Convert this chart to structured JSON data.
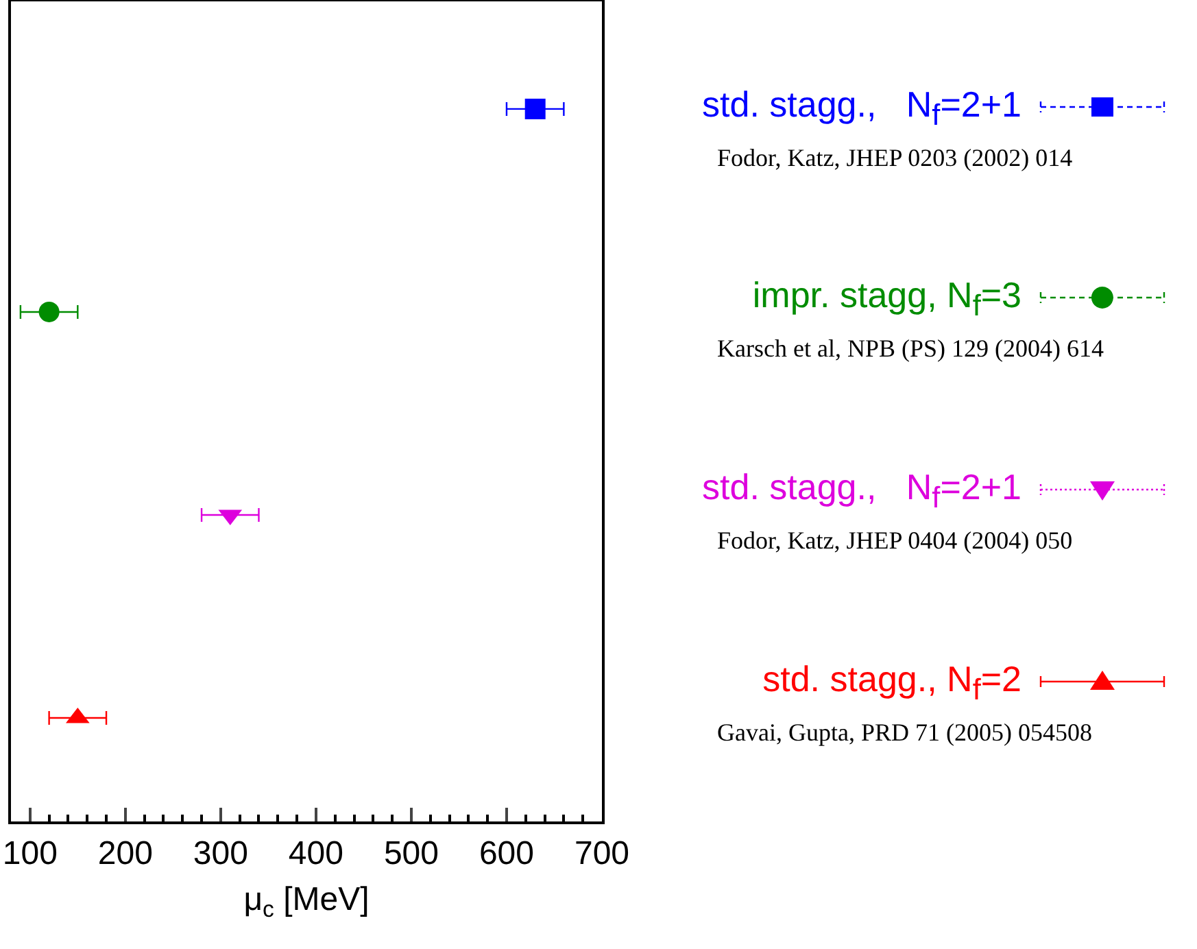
{
  "chart_data": {
    "type": "scatter",
    "orientation": "horizontal",
    "xlabel": "μ$_{c}$ [MeV]",
    "categories": [
      null,
      null,
      null,
      null
    ],
    "xlim": [
      80,
      700
    ],
    "xticks": [
      100,
      200,
      300,
      400,
      500,
      600,
      700
    ],
    "tick_labels": "x",
    "grid": false,
    "legend": "right",
    "series": [
      {
        "name": "std. stagg.,   N$_{f}$=2+1",
        "color": "#0000ff",
        "marker": "square",
        "line_style": "dashed",
        "values": [
          630,
          null,
          null,
          null
        ],
        "errors": [
          30,
          null,
          null,
          null
        ]
      },
      {
        "name": "impr. stagg, N$_{f}$=3",
        "color": "#008c00",
        "marker": "circle",
        "line_style": "dashed",
        "values": [
          null,
          120,
          null,
          null
        ],
        "errors": [
          null,
          30,
          null,
          null
        ]
      },
      {
        "name": "std. stagg.,   N$_{f}$=2+1",
        "color": "#dd00dd",
        "marker": "triangle-down",
        "line_style": "dotted",
        "values": [
          null,
          null,
          310,
          null
        ],
        "errors": [
          null,
          null,
          30,
          null
        ]
      },
      {
        "name": "std. stagg., N$_{f}$=2",
        "color": "#ff0000",
        "marker": "triangle",
        "line_style": "solid",
        "values": [
          null,
          null,
          null,
          150
        ],
        "errors": [
          null,
          null,
          null,
          30
        ]
      }
    ],
    "annotations": [
      "Fodor, Katz, JHEP 0203 (2002) 014",
      "Karsch et al, NPB (PS) 129 (2004) 614",
      "Fodor, Katz, JHEP 0404 (2004) 050",
      "Gavai, Gupta, PRD 71 (2005) 054508"
    ]
  }
}
